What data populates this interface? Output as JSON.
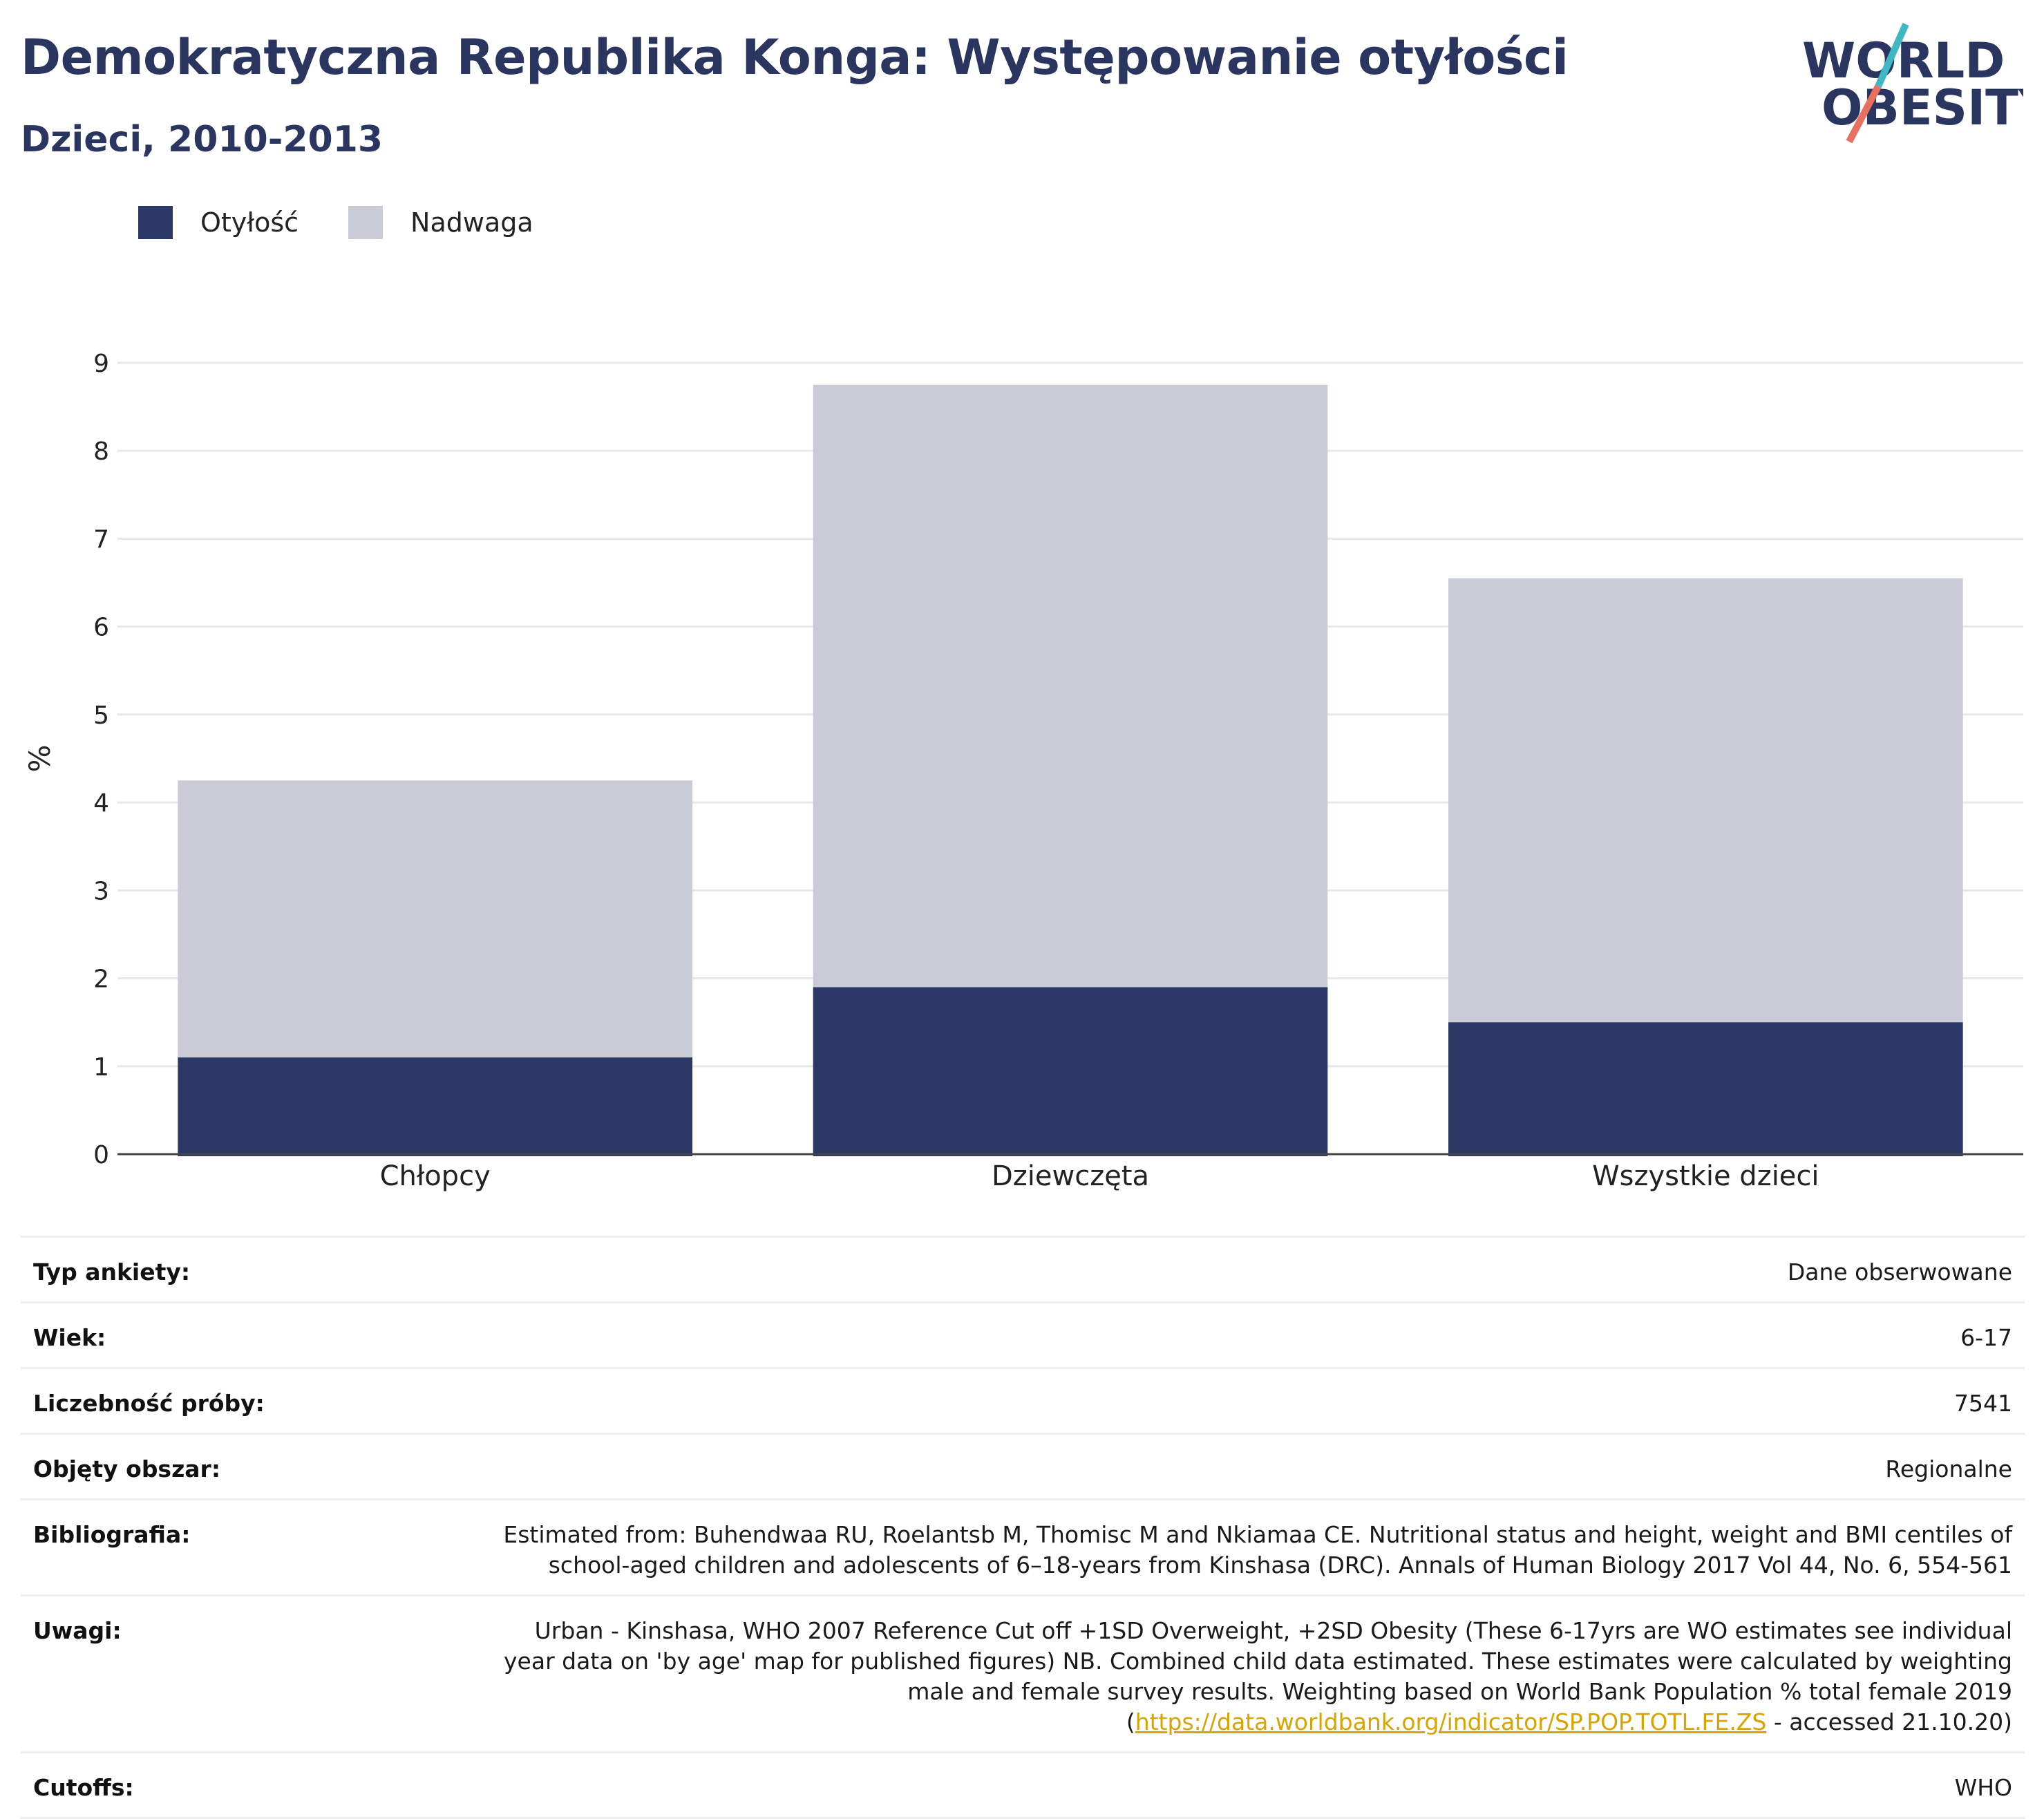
{
  "header": {
    "title": "Demokratyczna Republika Konga: Występowanie otyłości",
    "subtitle": "Dzieci, 2010-2013",
    "logo_line1": "WORLD",
    "logo_line2": "OBESITY"
  },
  "colors": {
    "obesity": "#2b3764",
    "overweight": "#c9cbd7",
    "title": "#2a3560",
    "link": "#d9a400",
    "logo_teal": "#3fb8c4",
    "logo_coral": "#e8705f"
  },
  "chart_data": {
    "type": "bar",
    "stacked": true,
    "title": "Demokratyczna Republika Konga: Występowanie otyłości",
    "subtitle": "Dzieci, 2010-2013",
    "ylabel": "%",
    "xlabel": "",
    "ylim": [
      0,
      9
    ],
    "yticks": [
      0,
      1,
      2,
      3,
      4,
      5,
      6,
      7,
      8,
      9
    ],
    "grid": true,
    "legend_position": "top-left",
    "categories": [
      "Chłopcy",
      "Dziewczęta",
      "Wszystkie dzieci"
    ],
    "series": [
      {
        "name": "Otyłość",
        "color": "#2b3764",
        "values": [
          1.1,
          1.9,
          1.5
        ]
      },
      {
        "name": "Nadwaga",
        "color": "#c9cbd7",
        "values": [
          3.15,
          6.85,
          5.05
        ]
      }
    ]
  },
  "info": [
    {
      "key": "Typ ankiety:",
      "value": "Dane obserwowane"
    },
    {
      "key": "Wiek:",
      "value": "6-17"
    },
    {
      "key": "Liczebność próby:",
      "value": "7541"
    },
    {
      "key": "Objęty obszar:",
      "value": "Regionalne"
    },
    {
      "key": "Bibliografia:",
      "value": "Estimated from: Buhendwaa RU, Roelantsb M, Thomisc M and Nkiamaa CE. Nutritional status and height, weight and BMI centiles of school-aged children and adolescents of 6–18-years from Kinshasa (DRC). Annals of Human Biology 2017 Vol 44, No. 6, 554-561"
    },
    {
      "key": "Uwagi:",
      "value": "Urban - Kinshasa, WHO 2007 Reference Cut off +1SD Overweight, +2SD Obesity (These 6-17yrs are WO estimates see individual year data on 'by age' map for published figures) NB. Combined child data estimated. These estimates were calculated by weighting male and female survey results. Weighting based on World Bank Population % total female 2019 (",
      "link": "https://data.worldbank.org/indicator/SP.POP.TOTL.FE.ZS",
      "value_after": " - accessed 21.10.20)"
    },
    {
      "key": "Cutoffs:",
      "value": "WHO"
    }
  ]
}
